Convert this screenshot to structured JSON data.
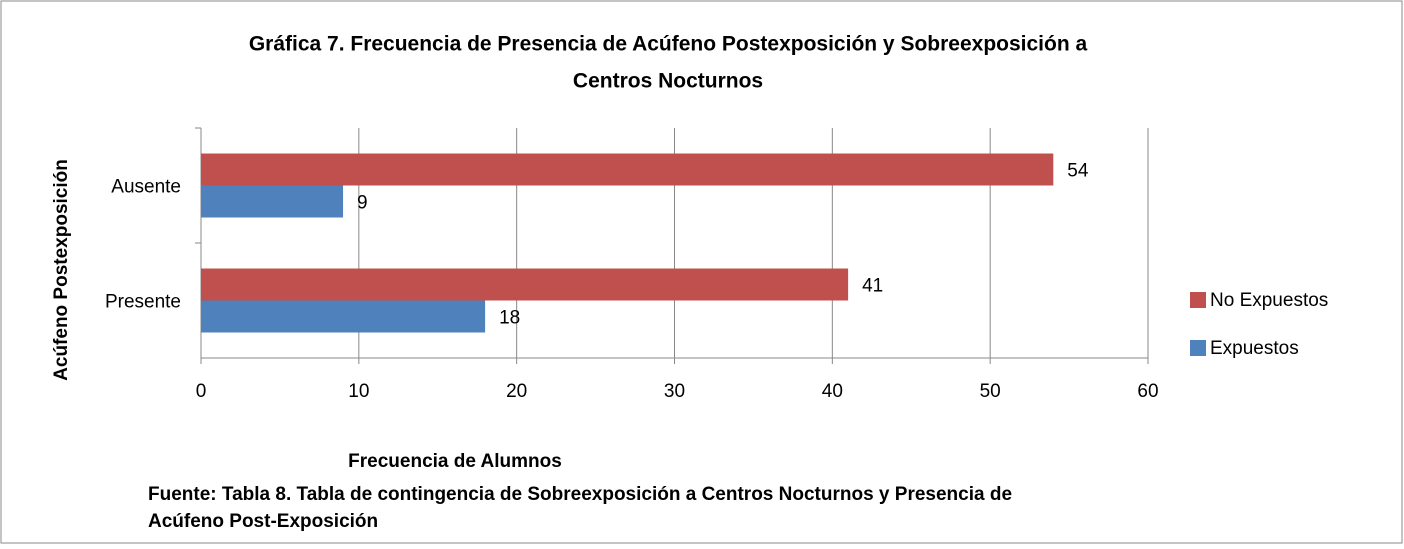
{
  "chart_data": {
    "type": "hbar",
    "title": [
      "Gráfica 7. Frecuencia de Presencia de Acúfeno Postexposición y Sobreexposición a",
      "Centros Nocturnos"
    ],
    "x_label": "Frecuencia de Alumnos",
    "y_label": "Acúfeno Postexposición",
    "source": [
      "Fuente: Tabla 8. Tabla de contingencia de Sobreexposición a Centros Nocturnos y Presencia de",
      "Acúfeno Post-Exposición"
    ],
    "categories": [
      "Ausente",
      "Presente"
    ],
    "series": [
      {
        "name": "No Expuestos",
        "color": "#c0504d",
        "values": [
          54,
          41
        ]
      },
      {
        "name": "Expuestos",
        "color": "#4f81bd",
        "values": [
          9,
          18
        ]
      }
    ],
    "xlim": [
      0,
      60
    ],
    "xticks": [
      0,
      10,
      20,
      30,
      40,
      50,
      60
    ],
    "grid": true,
    "legend": "right"
  }
}
